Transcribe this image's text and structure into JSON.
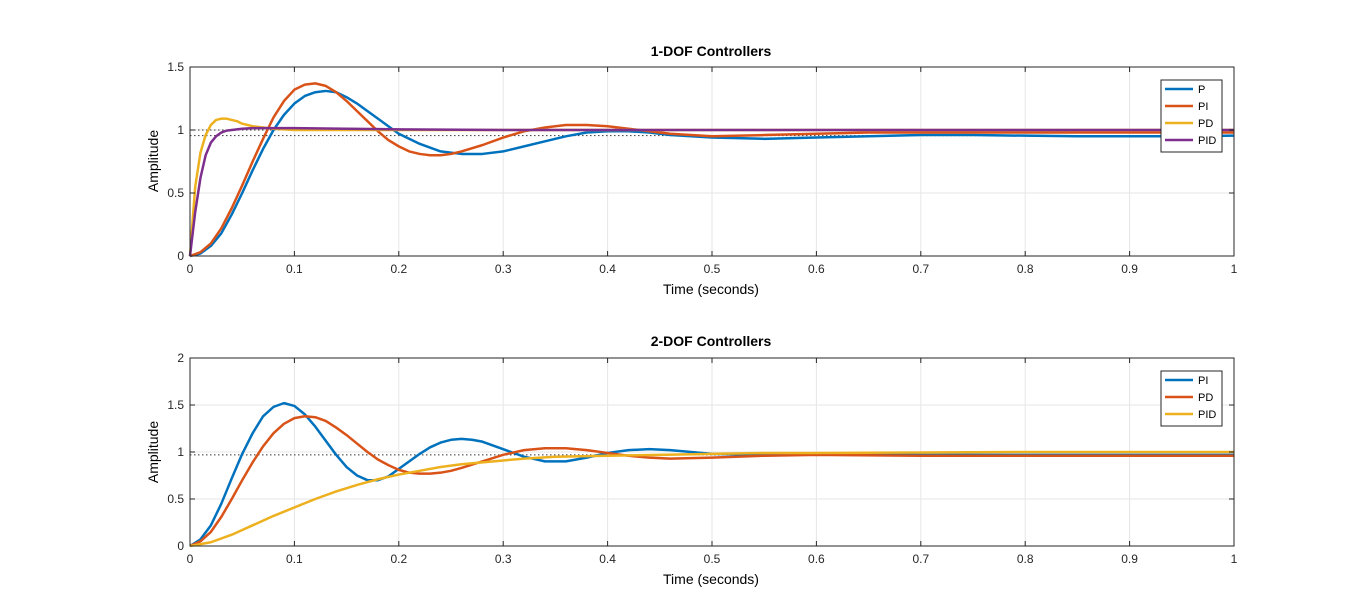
{
  "chart_data": [
    {
      "type": "line",
      "title": "1-DOF Controllers",
      "xlabel": "Time (seconds)",
      "ylabel": "Amplitude",
      "xlim": [
        0,
        1
      ],
      "ylim": [
        0,
        1.5
      ],
      "xticks": [
        0,
        0.1,
        0.2,
        0.3,
        0.4,
        0.5,
        0.6,
        0.7,
        0.8,
        0.9,
        1
      ],
      "xtick_labels": [
        "0",
        "0.1",
        "0.2",
        "0.3",
        "0.4",
        "0.5",
        "0.6",
        "0.7",
        "0.8",
        "0.9",
        "1"
      ],
      "yticks": [
        0,
        0.5,
        1,
        1.5
      ],
      "ytick_labels": [
        "0",
        "0.5",
        "1",
        "1.5"
      ],
      "grid": true,
      "legend_position": "top-right",
      "reference_lines": [
        1.0,
        0.955
      ],
      "series": [
        {
          "name": "P",
          "color": "#0072BD",
          "x": [
            0,
            0.01,
            0.02,
            0.03,
            0.04,
            0.05,
            0.06,
            0.07,
            0.08,
            0.09,
            0.1,
            0.11,
            0.12,
            0.13,
            0.14,
            0.15,
            0.16,
            0.17,
            0.18,
            0.19,
            0.2,
            0.22,
            0.24,
            0.26,
            0.28,
            0.3,
            0.32,
            0.34,
            0.36,
            0.38,
            0.4,
            0.42,
            0.44,
            0.46,
            0.48,
            0.5,
            0.55,
            0.6,
            0.65,
            0.7,
            0.75,
            0.8,
            0.85,
            0.9,
            0.95,
            1.0
          ],
          "y": [
            0,
            0.02,
            0.08,
            0.18,
            0.33,
            0.5,
            0.68,
            0.85,
            1.0,
            1.12,
            1.21,
            1.27,
            1.3,
            1.31,
            1.3,
            1.26,
            1.21,
            1.15,
            1.09,
            1.03,
            0.97,
            0.89,
            0.83,
            0.81,
            0.81,
            0.83,
            0.87,
            0.91,
            0.95,
            0.98,
            0.99,
            0.99,
            0.98,
            0.96,
            0.95,
            0.94,
            0.93,
            0.94,
            0.95,
            0.96,
            0.96,
            0.955,
            0.95,
            0.95,
            0.95,
            0.955
          ]
        },
        {
          "name": "PI",
          "color": "#D95319",
          "x": [
            0,
            0.01,
            0.02,
            0.03,
            0.04,
            0.05,
            0.06,
            0.07,
            0.08,
            0.09,
            0.1,
            0.11,
            0.12,
            0.13,
            0.14,
            0.15,
            0.16,
            0.17,
            0.18,
            0.19,
            0.2,
            0.21,
            0.22,
            0.23,
            0.24,
            0.25,
            0.26,
            0.28,
            0.3,
            0.32,
            0.34,
            0.36,
            0.38,
            0.4,
            0.42,
            0.44,
            0.46,
            0.48,
            0.5,
            0.55,
            0.6,
            0.65,
            0.7,
            0.8,
            0.9,
            1.0
          ],
          "y": [
            0,
            0.03,
            0.1,
            0.22,
            0.38,
            0.56,
            0.75,
            0.93,
            1.1,
            1.23,
            1.32,
            1.36,
            1.37,
            1.35,
            1.3,
            1.23,
            1.15,
            1.07,
            0.99,
            0.92,
            0.87,
            0.83,
            0.81,
            0.8,
            0.8,
            0.81,
            0.83,
            0.88,
            0.94,
            0.99,
            1.02,
            1.04,
            1.04,
            1.03,
            1.01,
            0.99,
            0.97,
            0.96,
            0.95,
            0.96,
            0.97,
            0.98,
            0.98,
            0.98,
            0.98,
            0.98
          ]
        },
        {
          "name": "PD",
          "color": "#EDB120",
          "x": [
            0,
            0.005,
            0.01,
            0.015,
            0.02,
            0.025,
            0.03,
            0.035,
            0.04,
            0.045,
            0.05,
            0.06,
            0.07,
            0.08,
            0.1,
            0.15,
            0.2,
            0.3,
            0.4,
            0.5,
            0.6,
            0.7,
            0.8,
            0.9,
            1.0
          ],
          "y": [
            0,
            0.55,
            0.82,
            0.96,
            1.04,
            1.08,
            1.09,
            1.09,
            1.08,
            1.07,
            1.05,
            1.03,
            1.02,
            1.01,
            1.0,
            1.0,
            1.0,
            1.0,
            1.0,
            1.0,
            1.0,
            1.0,
            1.0,
            1.0,
            1.0
          ]
        },
        {
          "name": "PID",
          "color": "#7E2F8E",
          "x": [
            0,
            0.005,
            0.01,
            0.015,
            0.02,
            0.025,
            0.03,
            0.035,
            0.04,
            0.05,
            0.06,
            0.08,
            0.1,
            0.15,
            0.2,
            0.3,
            0.4,
            0.5,
            0.6,
            0.7,
            0.8,
            0.9,
            1.0
          ],
          "y": [
            0,
            0.35,
            0.62,
            0.8,
            0.9,
            0.95,
            0.98,
            0.995,
            1.0,
            1.01,
            1.015,
            1.015,
            1.015,
            1.01,
            1.005,
            1.0,
            1.0,
            1.0,
            1.0,
            1.0,
            1.0,
            1.0,
            1.0
          ]
        }
      ]
    },
    {
      "type": "line",
      "title": "2-DOF Controllers",
      "xlabel": "Time (seconds)",
      "ylabel": "Amplitude",
      "xlim": [
        0,
        1
      ],
      "ylim": [
        0,
        2
      ],
      "xticks": [
        0,
        0.1,
        0.2,
        0.3,
        0.4,
        0.5,
        0.6,
        0.7,
        0.8,
        0.9,
        1
      ],
      "xtick_labels": [
        "0",
        "0.1",
        "0.2",
        "0.3",
        "0.4",
        "0.5",
        "0.6",
        "0.7",
        "0.8",
        "0.9",
        "1"
      ],
      "yticks": [
        0,
        0.5,
        1,
        1.5,
        2
      ],
      "ytick_labels": [
        "0",
        "0.5",
        "1",
        "1.5",
        "2"
      ],
      "grid": true,
      "legend_position": "top-right",
      "reference_lines": [
        0.97
      ],
      "series": [
        {
          "name": "PI",
          "color": "#0072BD",
          "x": [
            0,
            0.01,
            0.02,
            0.03,
            0.04,
            0.05,
            0.06,
            0.07,
            0.08,
            0.09,
            0.1,
            0.11,
            0.12,
            0.13,
            0.14,
            0.15,
            0.16,
            0.17,
            0.18,
            0.19,
            0.2,
            0.21,
            0.22,
            0.23,
            0.24,
            0.25,
            0.26,
            0.27,
            0.28,
            0.29,
            0.3,
            0.32,
            0.34,
            0.36,
            0.38,
            0.4,
            0.42,
            0.44,
            0.46,
            0.48,
            0.5,
            0.55,
            0.6,
            0.65,
            0.7,
            0.8,
            0.9,
            1.0
          ],
          "y": [
            0,
            0.07,
            0.22,
            0.45,
            0.72,
            0.98,
            1.2,
            1.38,
            1.48,
            1.52,
            1.49,
            1.4,
            1.27,
            1.12,
            0.97,
            0.84,
            0.75,
            0.7,
            0.7,
            0.74,
            0.82,
            0.9,
            0.98,
            1.05,
            1.1,
            1.13,
            1.14,
            1.13,
            1.11,
            1.07,
            1.03,
            0.95,
            0.9,
            0.9,
            0.94,
            0.99,
            1.02,
            1.03,
            1.02,
            1.0,
            0.98,
            0.97,
            0.98,
            0.98,
            0.97,
            0.97,
            0.97,
            0.97
          ]
        },
        {
          "name": "PD",
          "color": "#D95319",
          "x": [
            0,
            0.01,
            0.02,
            0.03,
            0.04,
            0.05,
            0.06,
            0.07,
            0.08,
            0.09,
            0.1,
            0.11,
            0.12,
            0.13,
            0.14,
            0.15,
            0.16,
            0.17,
            0.18,
            0.19,
            0.2,
            0.21,
            0.22,
            0.23,
            0.24,
            0.25,
            0.26,
            0.28,
            0.3,
            0.32,
            0.34,
            0.36,
            0.38,
            0.4,
            0.42,
            0.44,
            0.46,
            0.5,
            0.55,
            0.6,
            0.7,
            0.8,
            0.9,
            1.0
          ],
          "y": [
            0,
            0.05,
            0.15,
            0.31,
            0.5,
            0.7,
            0.89,
            1.06,
            1.2,
            1.3,
            1.36,
            1.38,
            1.37,
            1.33,
            1.26,
            1.18,
            1.09,
            1.0,
            0.92,
            0.86,
            0.81,
            0.78,
            0.77,
            0.77,
            0.78,
            0.8,
            0.83,
            0.9,
            0.97,
            1.02,
            1.04,
            1.04,
            1.02,
            0.99,
            0.96,
            0.94,
            0.93,
            0.94,
            0.96,
            0.97,
            0.96,
            0.96,
            0.96,
            0.96
          ]
        },
        {
          "name": "PID",
          "color": "#EDB120",
          "x": [
            0,
            0.02,
            0.04,
            0.06,
            0.08,
            0.1,
            0.12,
            0.14,
            0.16,
            0.18,
            0.2,
            0.22,
            0.24,
            0.26,
            0.28,
            0.3,
            0.32,
            0.35,
            0.4,
            0.45,
            0.5,
            0.55,
            0.6,
            0.7,
            0.8,
            0.9,
            1.0
          ],
          "y": [
            0,
            0.04,
            0.12,
            0.22,
            0.32,
            0.41,
            0.5,
            0.58,
            0.65,
            0.71,
            0.76,
            0.8,
            0.84,
            0.87,
            0.89,
            0.91,
            0.93,
            0.95,
            0.96,
            0.97,
            0.98,
            0.99,
            0.99,
            0.995,
            1.0,
            1.0,
            1.0
          ]
        }
      ]
    }
  ]
}
